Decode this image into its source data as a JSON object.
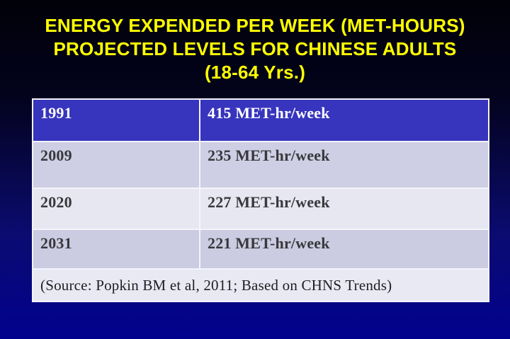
{
  "slide": {
    "title": {
      "line1": "ENERGY EXPENDED PER WEEK (MET-HOURS)",
      "line2": "PROJECTED LEVELS FOR CHINESE ADULTS",
      "line3": "(18-64 Yrs.)",
      "color": "#ffff00"
    },
    "table": {
      "rows": [
        {
          "year": "1991",
          "value": "415 MET-hr/week"
        },
        {
          "year": "2009",
          "value": "235 MET-hr/week"
        },
        {
          "year": "2020",
          "value": "227 MET-hr/week"
        },
        {
          "year": "2031",
          "value": "221 MET-hr/week"
        }
      ],
      "source": "(Source: Popkin BM et al, 2011; Based on CHNS Trends)"
    },
    "colors": {
      "background_top": "#010109",
      "background_bottom": "#01018e",
      "title_text": "#ffff00",
      "highlight_row_bg": "#3734bd",
      "highlight_row_text": "#ffffff",
      "row_lavender_bg": "#cecee4",
      "row_light_bg": "#e7e7f2",
      "source_row_bg": "#e9e9f4",
      "table_border": "#f4f4fa",
      "body_text": "#38383d"
    }
  }
}
